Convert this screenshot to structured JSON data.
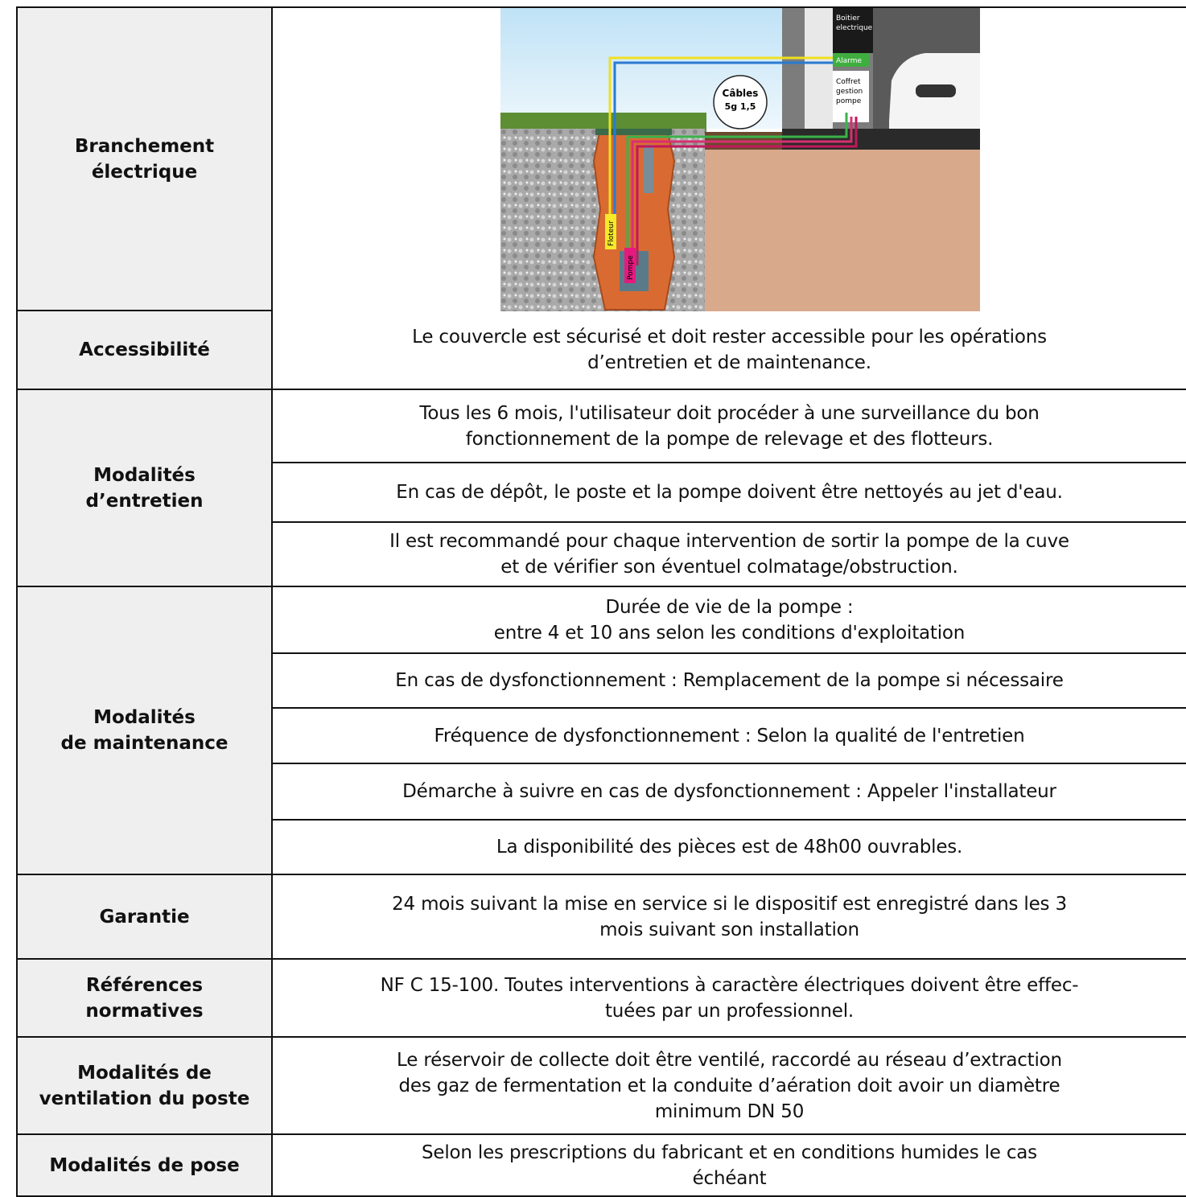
{
  "rows": [
    {
      "label": "Branchement\nélectrique",
      "diagram": {
        "boitier": [
          "Boitier",
          "electrique"
        ],
        "alarme": "Alarme",
        "coffret": [
          "Coffret",
          "gestion",
          "pompe"
        ],
        "cables": [
          "Câbles",
          "5g 1,5"
        ],
        "floteur": "Floteur",
        "pompe": "Pompe"
      }
    },
    {
      "label": "Accessibilité",
      "cells": [
        "Le couvercle est sécurisé et doit rester accessible pour les opérations\nd’entretien et de maintenance."
      ]
    },
    {
      "label": "Modalités\nd’entretien",
      "cells": [
        "Tous les 6 mois, l'utilisateur doit procéder à une surveillance du bon\nfonctionnement de la pompe de relevage et des flotteurs.",
        "En cas de dépôt, le poste et la pompe doivent être nettoyés au jet d'eau.",
        "Il est recommandé pour chaque intervention de sortir la pompe de la cuve\net de vérifier son éventuel colmatage/obstruction."
      ]
    },
    {
      "label": "Modalités\nde maintenance",
      "cells": [
        "Durée de vie de la pompe :\nentre 4 et 10 ans selon les conditions d'exploitation",
        "En cas de dysfonctionnement : Remplacement de la pompe si nécessaire",
        "Fréquence de dysfonctionnement : Selon la qualité de l'entretien",
        "Démarche à suivre en cas de dysfonctionnement : Appeler l'installateur",
        "La disponibilité des pièces est de 48h00 ouvrables."
      ]
    },
    {
      "label": "Garantie",
      "cells": [
        "24 mois suivant la mise en service si le dispositif est enregistré dans les 3\nmois suivant son installation"
      ]
    },
    {
      "label": "Références\nnormatives",
      "cells": [
        "NF C 15-100. Toutes interventions à caractère électriques doivent être effec-\ntuées par un professionnel."
      ]
    },
    {
      "label": "Modalités de\nventilation du poste",
      "cells": [
        "Le réservoir de collecte doit être ventilé, raccordé au réseau d’extraction\ndes gaz de fermentation et la conduite d’aération doit avoir un diamètre\nminimum DN 50"
      ]
    },
    {
      "label": "Modalités de pose",
      "cells": [
        "Selon les prescriptions du fabricant et en conditions humides le cas\néchéant"
      ]
    }
  ]
}
